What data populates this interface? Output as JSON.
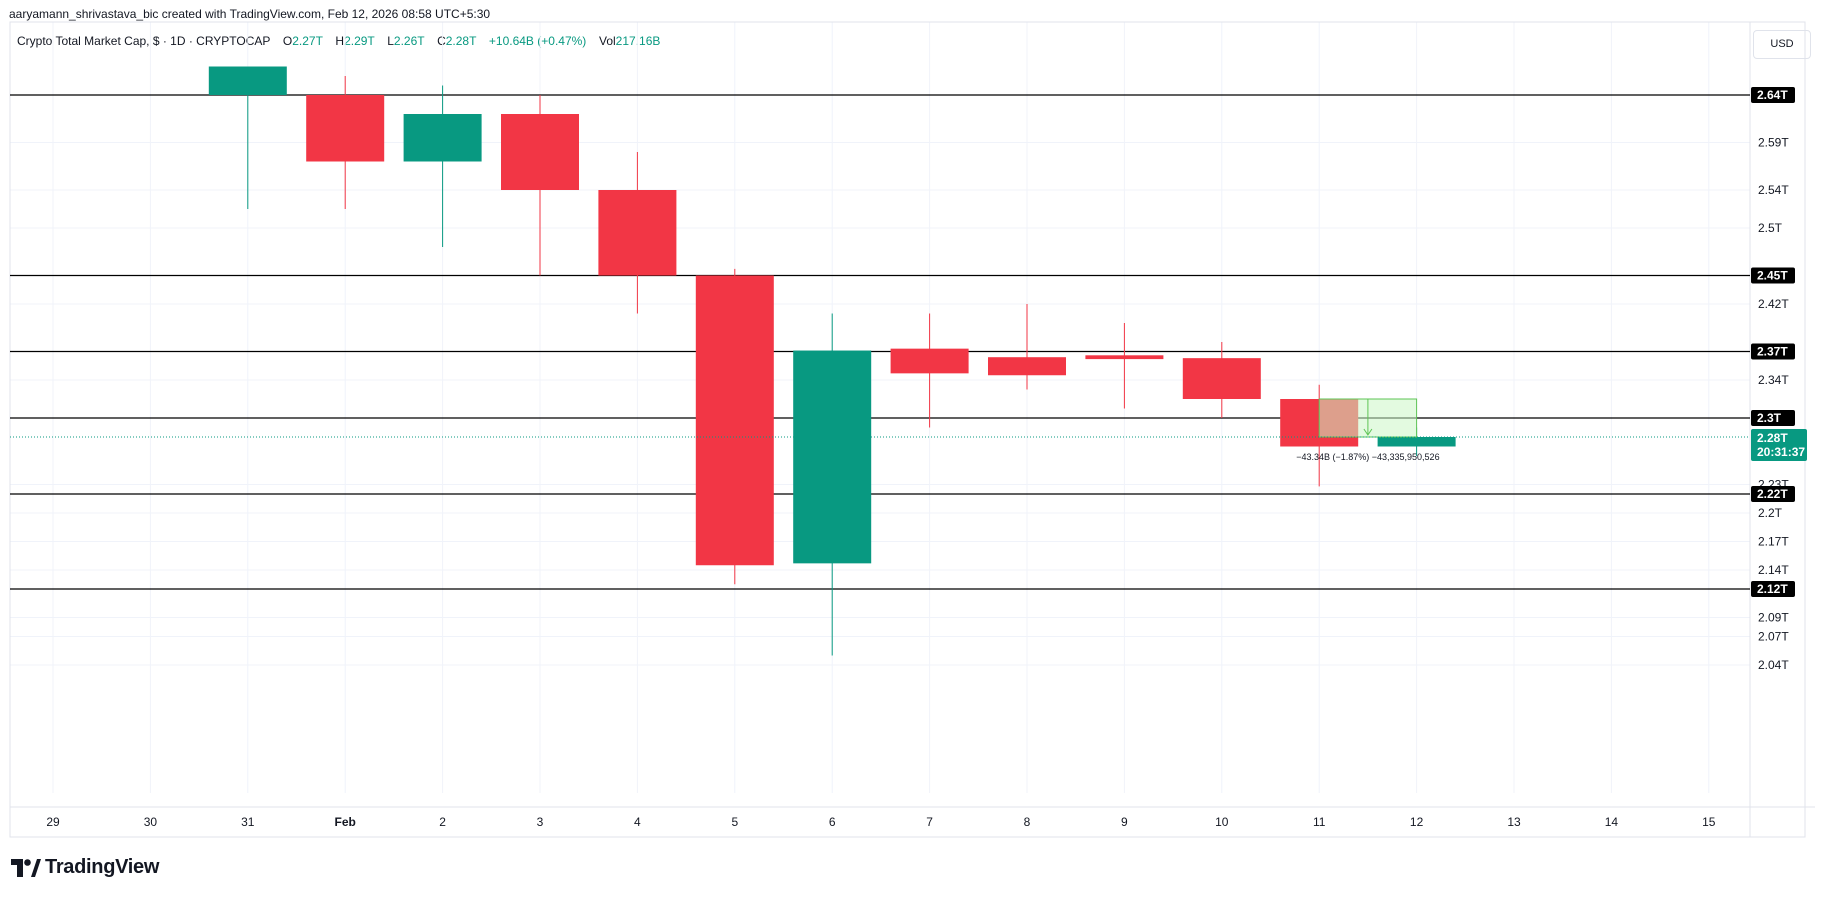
{
  "header": {
    "attribution": "aaryamann_shrivastava_bic created with TradingView.com, Feb 12, 2026 08:58 UTC+5:30"
  },
  "legend": {
    "symbol": "Crypto Total Market Cap, $ · 1D · CRYPTOCAP",
    "open_label": "O",
    "open_value": "2.27T",
    "high_label": "H",
    "high_value": "2.29T",
    "low_label": "L",
    "low_value": "2.26T",
    "close_label": "C",
    "close_value": "2.28T",
    "change": "+10.64B (+0.47%)",
    "vol_label": "Vol",
    "vol_value": "217.16B"
  },
  "currency_button": "USD",
  "branding": {
    "logo_text": "TradingView"
  },
  "colors": {
    "up": "#089981",
    "down": "#f23645",
    "grid": "#f0f3fa",
    "level_line": "#000000",
    "measure_fill": "#ccf5c7",
    "measure_border": "#5ec455"
  },
  "chart_data": {
    "type": "candlestick",
    "x_ticks": [
      "29",
      "30",
      "31",
      "Feb",
      "2",
      "3",
      "4",
      "5",
      "6",
      "7",
      "8",
      "9",
      "10",
      "11",
      "12",
      "13",
      "14",
      "15"
    ],
    "y_ticks": [
      "2.59T",
      "2.54T",
      "2.5T",
      "2.42T",
      "2.34T",
      "2.23T",
      "2.2T",
      "2.17T",
      "2.14T",
      "2.09T",
      "2.07T",
      "2.04T"
    ],
    "y_unit": "T",
    "ylim": [
      2.0,
      2.68
    ],
    "candles": [
      {
        "date": "31",
        "open": 2.64,
        "high": 2.67,
        "low": 2.52,
        "close": 2.67
      },
      {
        "date": "Feb",
        "open": 2.64,
        "high": 2.66,
        "low": 2.52,
        "close": 2.57
      },
      {
        "date": "2",
        "open": 2.57,
        "high": 2.65,
        "low": 2.48,
        "close": 2.62
      },
      {
        "date": "3",
        "open": 2.62,
        "high": 2.64,
        "low": 2.45,
        "close": 2.54
      },
      {
        "date": "4",
        "open": 2.54,
        "high": 2.58,
        "low": 2.41,
        "close": 2.45
      },
      {
        "date": "5",
        "open": 2.45,
        "high": 2.457,
        "low": 2.125,
        "close": 2.145
      },
      {
        "date": "6",
        "open": 2.147,
        "high": 2.41,
        "low": 2.05,
        "close": 2.371
      },
      {
        "date": "7",
        "open": 2.373,
        "high": 2.41,
        "low": 2.29,
        "close": 2.347
      },
      {
        "date": "8",
        "open": 2.364,
        "high": 2.42,
        "low": 2.33,
        "close": 2.345
      },
      {
        "date": "9",
        "open": 2.366,
        "high": 2.4,
        "low": 2.31,
        "close": 2.362
      },
      {
        "date": "10",
        "open": 2.363,
        "high": 2.38,
        "low": 2.3,
        "close": 2.32
      },
      {
        "date": "11",
        "open": 2.32,
        "high": 2.335,
        "low": 2.228,
        "close": 2.27
      },
      {
        "date": "12",
        "open": 2.27,
        "high": 2.29,
        "low": 2.26,
        "close": 2.28
      }
    ],
    "horizontal_levels": [
      "2.64T",
      "2.45T",
      "2.37T",
      "2.3T",
      "2.22T",
      "2.12T"
    ],
    "last_price_label": "2.28T",
    "countdown": "20:31:37",
    "measurement_label": "−43.34B (−1.87%) −43,335,950,526",
    "measurement": {
      "from_date": "11",
      "to_date": "12",
      "top": 2.32,
      "bottom": 2.28
    }
  }
}
